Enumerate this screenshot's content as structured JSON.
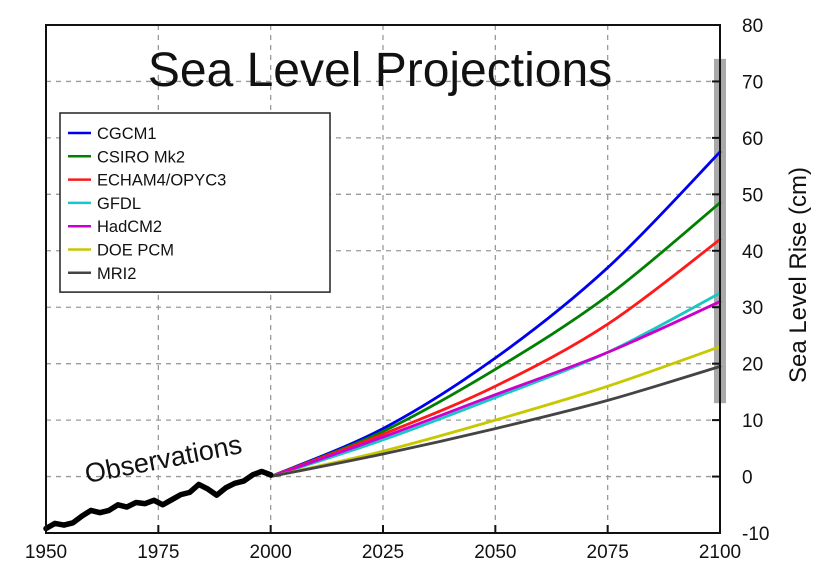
{
  "chart_data": {
    "type": "line",
    "title": "Sea Level Projections",
    "xlabel": "",
    "ylabel": "Sea Level Rise (cm)",
    "xlim": [
      1950,
      2100
    ],
    "ylim": [
      -10,
      80
    ],
    "x_ticks": [
      1950,
      1975,
      2000,
      2025,
      2050,
      2075,
      2100
    ],
    "y_ticks": [
      -10,
      0,
      10,
      20,
      30,
      40,
      50,
      60,
      70,
      80
    ],
    "grid": true,
    "legend_position": "upper-left",
    "annotation": "Observations",
    "projection_range": [
      13,
      74
    ],
    "series": [
      {
        "name": "CGCM1",
        "color": "#0000ee",
        "x": [
          2000,
          2025,
          2050,
          2075,
          2100
        ],
        "y": [
          0,
          8.5,
          21,
          37,
          57.5
        ]
      },
      {
        "name": "CSIRO Mk2",
        "color": "#008000",
        "x": [
          2000,
          2025,
          2050,
          2075,
          2100
        ],
        "y": [
          0,
          8,
          19,
          32,
          48.5
        ]
      },
      {
        "name": "ECHAM4/OPYC3",
        "color": "#ff1a1a",
        "x": [
          2000,
          2025,
          2050,
          2075,
          2100
        ],
        "y": [
          0,
          7.5,
          16,
          27,
          42
        ]
      },
      {
        "name": "GFDL",
        "color": "#1ac6c6",
        "x": [
          2000,
          2025,
          2050,
          2075,
          2100
        ],
        "y": [
          0,
          6.5,
          14,
          22,
          32.5
        ]
      },
      {
        "name": "HadCM2",
        "color": "#cc00cc",
        "x": [
          2000,
          2025,
          2050,
          2075,
          2100
        ],
        "y": [
          0,
          7,
          14.5,
          22,
          31
        ]
      },
      {
        "name": "DOE PCM",
        "color": "#c8c800",
        "x": [
          2000,
          2025,
          2050,
          2075,
          2100
        ],
        "y": [
          0,
          4.5,
          10,
          16,
          23
        ]
      },
      {
        "name": "MRI2",
        "color": "#444444",
        "x": [
          2000,
          2025,
          2050,
          2075,
          2100
        ],
        "y": [
          0,
          4,
          8.5,
          13.5,
          19.5
        ]
      },
      {
        "name": "Observations",
        "color": "#000000",
        "x": [
          1950,
          1952,
          1954,
          1956,
          1958,
          1960,
          1962,
          1964,
          1966,
          1968,
          1970,
          1972,
          1974,
          1976,
          1978,
          1980,
          1982,
          1984,
          1986,
          1988,
          1990,
          1992,
          1994,
          1996,
          1998,
          2000
        ],
        "y": [
          -9.2,
          -8.3,
          -8.6,
          -8.2,
          -7.0,
          -6.0,
          -6.4,
          -6.0,
          -5.0,
          -5.4,
          -4.6,
          -4.8,
          -4.2,
          -5.0,
          -4.1,
          -3.2,
          -2.8,
          -1.4,
          -2.2,
          -3.3,
          -2.0,
          -1.2,
          -0.8,
          0.3,
          0.9,
          0.3
        ]
      }
    ]
  }
}
